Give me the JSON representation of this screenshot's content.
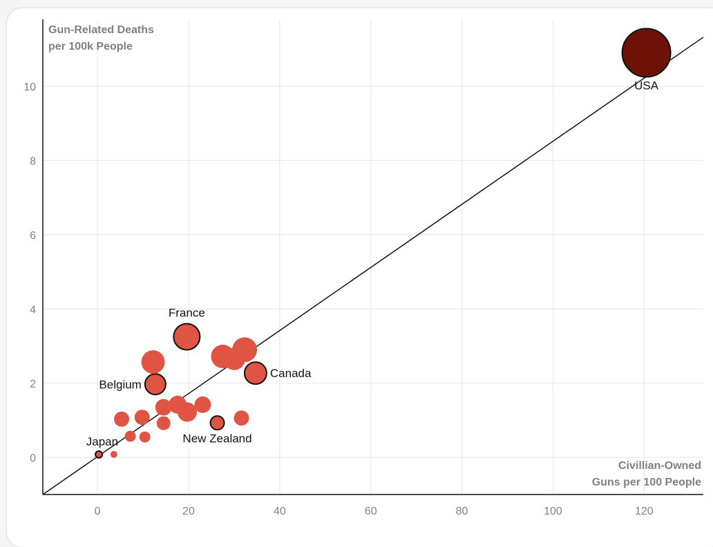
{
  "chart_data": {
    "type": "scatter",
    "title": "",
    "xlabel": [
      "Civillian-Owned",
      "Guns per 100 People"
    ],
    "ylabel": [
      "Gun-Related Deaths",
      "per 100k People"
    ],
    "xlim": [
      -12,
      133
    ],
    "ylim": [
      -1.0,
      11.8
    ],
    "x_ticks": [
      0,
      20,
      40,
      60,
      80,
      100,
      120
    ],
    "y_ticks": [
      0,
      2,
      4,
      6,
      8,
      10
    ],
    "grid": true,
    "trend_line": {
      "x": [
        -12,
        133
      ],
      "y": [
        -1.0,
        11.32
      ]
    },
    "colors": {
      "point": "#e05444",
      "highlight": "#6e1208",
      "outline": "#111111",
      "grid": "#e6e6e6",
      "trend": "#111111"
    },
    "points": [
      {
        "x": 120.5,
        "y": 10.9,
        "size": 35,
        "label": "USA",
        "label_pos": "below",
        "highlight": true,
        "outlined": true
      },
      {
        "x": 19.6,
        "y": 3.25,
        "size": 19,
        "label": "France",
        "label_pos": "above",
        "outlined": true
      },
      {
        "x": 34.7,
        "y": 2.27,
        "size": 16,
        "label": "Canada",
        "label_pos": "right",
        "outlined": true
      },
      {
        "x": 12.7,
        "y": 1.97,
        "size": 15,
        "label": "Belgium",
        "label_pos": "left",
        "outlined": true
      },
      {
        "x": 26.3,
        "y": 0.93,
        "size": 10,
        "label": "New Zealand",
        "label_pos": "below",
        "outlined": true
      },
      {
        "x": 0.3,
        "y": 0.08,
        "size": 5,
        "label": "Japan",
        "label_pos": "above-left",
        "outlined": true
      },
      {
        "x": 3.6,
        "y": 0.08,
        "size": 5
      },
      {
        "x": 12.2,
        "y": 2.57,
        "size": 17
      },
      {
        "x": 27.5,
        "y": 2.72,
        "size": 17
      },
      {
        "x": 30.0,
        "y": 2.65,
        "size": 16
      },
      {
        "x": 32.3,
        "y": 2.9,
        "size": 18
      },
      {
        "x": 23.1,
        "y": 1.42,
        "size": 12
      },
      {
        "x": 17.6,
        "y": 1.42,
        "size": 13
      },
      {
        "x": 14.5,
        "y": 1.35,
        "size": 12
      },
      {
        "x": 19.7,
        "y": 1.22,
        "size": 14
      },
      {
        "x": 9.8,
        "y": 1.08,
        "size": 11
      },
      {
        "x": 5.3,
        "y": 1.03,
        "size": 11
      },
      {
        "x": 31.6,
        "y": 1.06,
        "size": 11
      },
      {
        "x": 14.5,
        "y": 0.92,
        "size": 10
      },
      {
        "x": 7.2,
        "y": 0.57,
        "size": 8
      },
      {
        "x": 10.4,
        "y": 0.55,
        "size": 8
      }
    ]
  }
}
